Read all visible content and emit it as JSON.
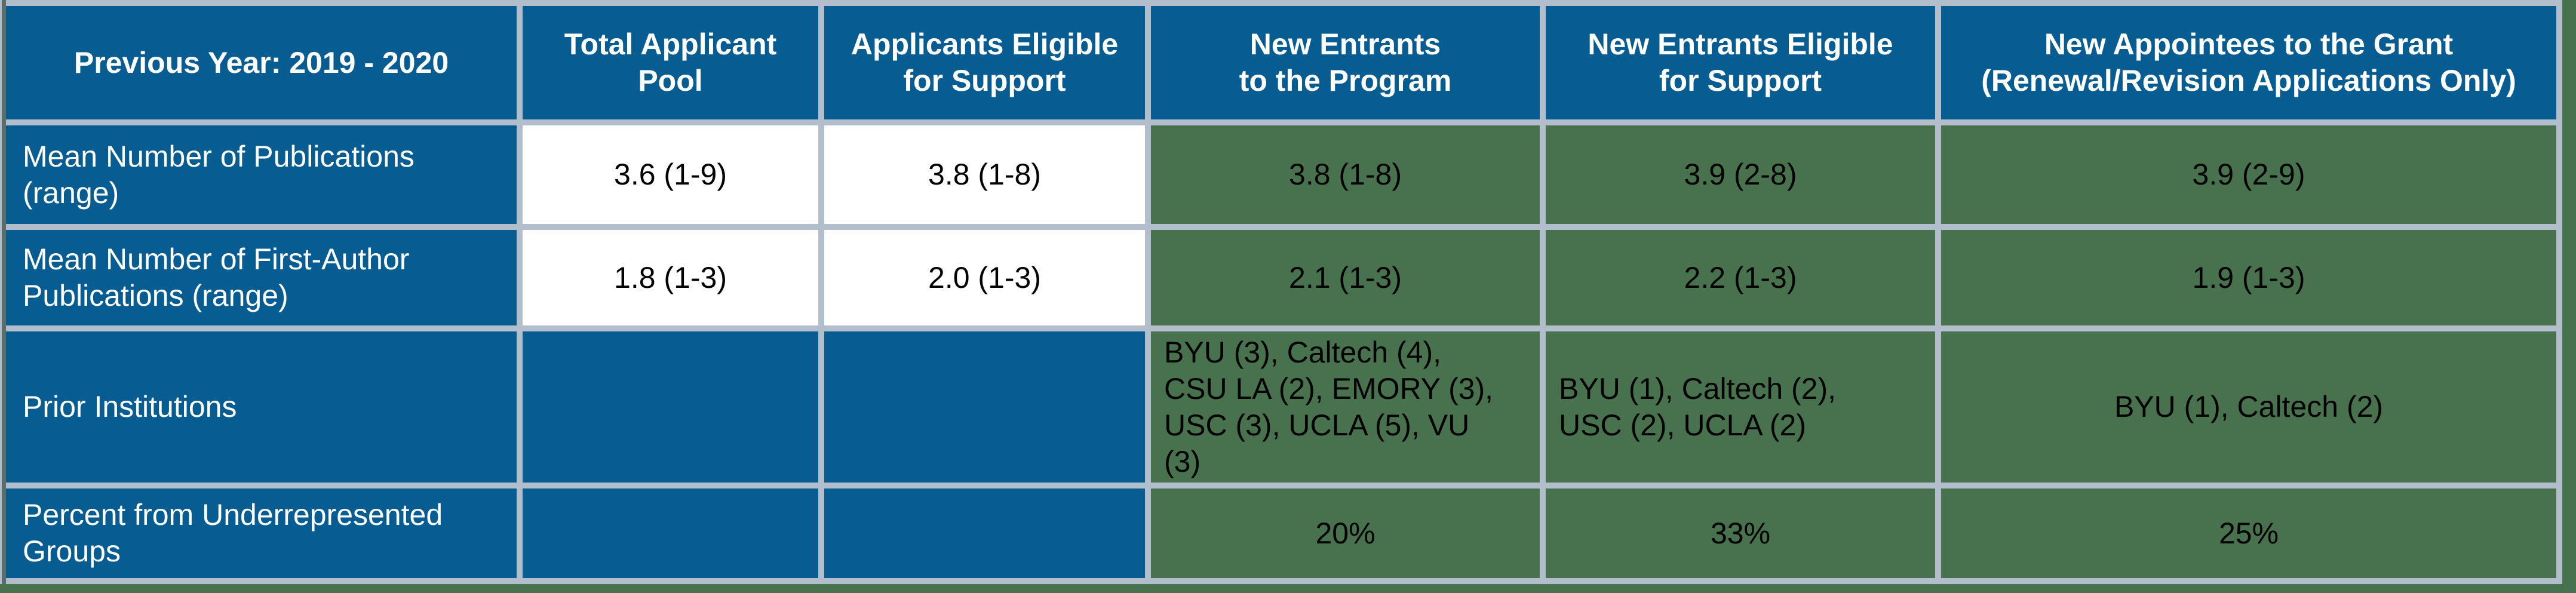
{
  "table": {
    "corner_header": "Previous Year: 2019 - 2020",
    "column_headers": [
      "Total Applicant\nPool",
      "Applicants Eligible\nfor Support",
      "New Entrants\nto the Program",
      "New Entrants Eligible\nfor Support",
      "New Appointees to the Grant\n(Renewal/Revision Applications Only)"
    ],
    "rows": [
      {
        "label": "Mean Number of Publications\n(range)",
        "values": [
          "3.6 (1-9)",
          "3.8 (1-8)",
          "3.8 (1-8)",
          "3.9 (2-8)",
          "3.9 (2-9)"
        ]
      },
      {
        "label": "Mean Number of First-Author\nPublications (range)",
        "values": [
          "1.8 (1-3)",
          "2.0 (1-3)",
          "2.1 (1-3)",
          "2.2 (1-3)",
          "1.9 (1-3)"
        ]
      },
      {
        "label": "Prior Institutions",
        "values": [
          "",
          "",
          "BYU (3), Caltech (4),\nCSU LA (2), EMORY (3),\nUSC (3), UCLA (5), VU\n(3)",
          "BYU (1), Caltech (2),\nUSC (2), UCLA (2)",
          "BYU (1), Caltech (2)"
        ]
      },
      {
        "label": "Percent from Underrepresented\nGroups",
        "values": [
          "",
          "",
          "20%",
          "33%",
          "25%"
        ]
      }
    ]
  },
  "colors": {
    "header_blue": "#075D92",
    "cell_green": "#48714E",
    "grid_gray": "#B3BECC",
    "cell_white": "#FFFFFF",
    "header_text": "#FFFFFF",
    "body_text": "#000000"
  }
}
